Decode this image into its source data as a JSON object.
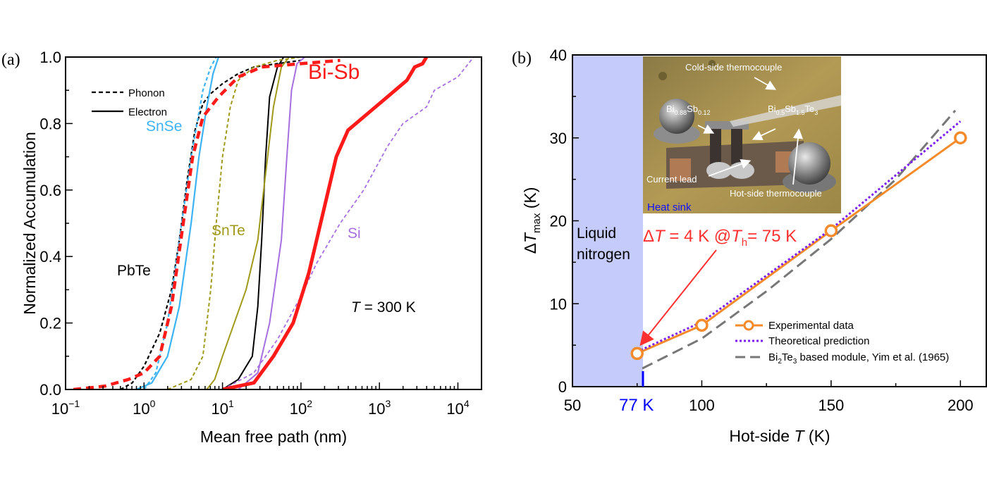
{
  "chart_data": [
    {
      "type": "line",
      "panel_label": "(a)",
      "xlabel": "Mean free path (nm)",
      "ylabel": "Normalized Accumulation",
      "xscale": "log",
      "xlim": [
        0.1,
        20000
      ],
      "ylim": [
        0,
        1.0
      ],
      "x_ticks": [
        {
          "base": "10",
          "exp": "−1"
        },
        {
          "base": "10",
          "exp": "0"
        },
        {
          "base": "10",
          "exp": "1"
        },
        {
          "base": "10",
          "exp": "2"
        },
        {
          "base": "10",
          "exp": "3"
        },
        {
          "base": "10",
          "exp": "4"
        }
      ],
      "y_ticks": [
        "0.0",
        "0.2",
        "0.4",
        "0.6",
        "0.8",
        "1.0"
      ],
      "legend": {
        "placement": "top-left",
        "entries": [
          {
            "label": "Phonon",
            "style": "dashed"
          },
          {
            "label": "Electron",
            "style": "solid"
          }
        ]
      },
      "annotations": {
        "temperature_T": "T",
        "temperature_rest": " = 300 K"
      },
      "material_labels": {
        "SnSe": "SnSe",
        "PbTe": "PbTe",
        "SnTe": "SnTe",
        "BiSb": "Bi-Sb",
        "Si": "Si"
      },
      "series": [
        {
          "name": "PbTe phonon",
          "color": "#000000",
          "style": "dashed",
          "width": 2.2,
          "log10_x": [
            -0.3,
            -0.15,
            0,
            0.2,
            0.35,
            0.45,
            0.55,
            0.65,
            0.75,
            0.85,
            1.0,
            1.2,
            1.4,
            1.7,
            2.0
          ],
          "y": [
            0,
            0.02,
            0.07,
            0.17,
            0.3,
            0.45,
            0.63,
            0.78,
            0.86,
            0.89,
            0.92,
            0.95,
            0.97,
            0.98,
            0.99
          ]
        },
        {
          "name": "PbTe electron",
          "color": "#000000",
          "style": "solid",
          "width": 2,
          "log10_x": [
            1.0,
            1.2,
            1.38,
            1.45,
            1.5,
            1.55,
            1.6,
            1.7,
            1.78
          ],
          "y": [
            0,
            0.03,
            0.1,
            0.25,
            0.45,
            0.7,
            0.88,
            0.97,
            1.0
          ]
        },
        {
          "name": "SnSe phonon",
          "color": "#3db3f5",
          "style": "dashed",
          "width": 2.2,
          "log10_x": [
            0,
            0.15,
            0.3,
            0.45,
            0.6,
            0.75,
            0.85,
            0.92
          ],
          "y": [
            0,
            0.05,
            0.2,
            0.45,
            0.7,
            0.9,
            0.97,
            1.0
          ]
        },
        {
          "name": "SnSe electron",
          "color": "#3db3f5",
          "style": "solid",
          "width": 2.2,
          "log10_x": [
            -0.1,
            0.1,
            0.3,
            0.45,
            0.6,
            0.7,
            0.8,
            0.88,
            0.95
          ],
          "y": [
            0,
            0.02,
            0.1,
            0.25,
            0.5,
            0.7,
            0.85,
            0.95,
            1.0
          ]
        },
        {
          "name": "SnTe phonon",
          "color": "#a09a1a",
          "style": "dashed",
          "width": 2,
          "log10_x": [
            0.3,
            0.6,
            0.75,
            0.85,
            0.92,
            1.0,
            1.1,
            1.2,
            1.4,
            1.7,
            2.0
          ],
          "y": [
            0,
            0.03,
            0.1,
            0.3,
            0.5,
            0.7,
            0.85,
            0.93,
            0.97,
            0.99,
            1.0
          ]
        },
        {
          "name": "SnTe electron",
          "color": "#a09a1a",
          "style": "solid",
          "width": 2,
          "log10_x": [
            0.8,
            0.9,
            1.0,
            1.15,
            1.3,
            1.45,
            1.55,
            1.65,
            1.75,
            1.85
          ],
          "y": [
            0,
            0.03,
            0.1,
            0.2,
            0.3,
            0.45,
            0.65,
            0.85,
            0.97,
            1.0
          ]
        },
        {
          "name": "Si phonon",
          "color": "#a66fe0",
          "style": "dashed",
          "width": 1.8,
          "log10_x": [
            1.0,
            1.4,
            1.7,
            2.0,
            2.2,
            2.5,
            2.8,
            3.1,
            3.3,
            3.6,
            3.7,
            4.0,
            4.2
          ],
          "y": [
            0,
            0.05,
            0.15,
            0.28,
            0.38,
            0.5,
            0.6,
            0.73,
            0.8,
            0.85,
            0.9,
            0.94,
            1.0
          ]
        },
        {
          "name": "Si electron",
          "color": "#a66fe0",
          "style": "solid",
          "width": 2,
          "log10_x": [
            1.2,
            1.45,
            1.6,
            1.75,
            1.82,
            1.88,
            1.95,
            2.05
          ],
          "y": [
            0,
            0.05,
            0.2,
            0.45,
            0.7,
            0.9,
            0.98,
            1.0
          ]
        },
        {
          "name": "Bi-Sb phonon",
          "color": "#ff1a1a",
          "style": "thickdashed",
          "width": 4.5,
          "log10_x": [
            -0.9,
            -0.5,
            -0.2,
            0,
            0.2,
            0.35,
            0.5,
            0.62,
            0.75,
            0.95,
            1.2,
            1.5,
            2.0,
            2.5
          ],
          "y": [
            0,
            0.01,
            0.03,
            0.05,
            0.1,
            0.25,
            0.5,
            0.7,
            0.82,
            0.88,
            0.94,
            0.97,
            0.98,
            0.99
          ]
        },
        {
          "name": "Bi-Sb electron",
          "color": "#ff1a1a",
          "style": "solid",
          "width": 5,
          "log10_x": [
            1.0,
            1.4,
            1.65,
            1.9,
            2.1,
            2.3,
            2.45,
            2.6,
            2.8,
            3.0,
            3.2,
            3.35,
            3.45,
            3.55,
            3.6
          ],
          "y": [
            0,
            0.02,
            0.1,
            0.2,
            0.35,
            0.55,
            0.7,
            0.78,
            0.82,
            0.86,
            0.9,
            0.93,
            0.97,
            0.98,
            1.0
          ]
        }
      ]
    },
    {
      "type": "line",
      "panel_label": "(b)",
      "xlabel_pre": "Hot-side ",
      "xlabel_T": "T",
      "xlabel_post": " (K)",
      "ylabel_delta": "Δ",
      "ylabel_T": "T",
      "ylabel_sub": "max",
      "ylabel_post": " (K)",
      "xlim": [
        50,
        210
      ],
      "ylim": [
        0,
        40
      ],
      "x_ticks": [
        "50",
        "100",
        "150",
        "200"
      ],
      "y_ticks": [
        "0",
        "10",
        "20",
        "30",
        "40"
      ],
      "marker_77K": {
        "value": 77,
        "label": "77 K",
        "color": "#0000ff"
      },
      "shaded_region": {
        "x_range": [
          50,
          77
        ],
        "label_line1": "Liquid",
        "label_line2": "nitrogen",
        "color": "#c5cbfa"
      },
      "annotation": {
        "delta": "Δ",
        "T": "T",
        "eq": " = 4 K @",
        "Th": "T",
        "h": "h",
        "rest": "= 75 K",
        "color": "#ff3030",
        "points_to": [
          75,
          4
        ]
      },
      "legend": {
        "placement": "bottom-right",
        "entries": [
          "Experimental data",
          "Theoretical prediction"
        ],
        "entry3": {
          "pre": "Bi",
          "sub1": "2",
          "mid": "Te",
          "sub2": "3",
          "post": " based module, Yim et al. (1965)"
        }
      },
      "series": [
        {
          "name": "Experimental data",
          "color": "#f58a2a",
          "style": "solid-markers",
          "x": [
            75,
            100,
            150,
            200
          ],
          "y": [
            4,
            7.4,
            18.8,
            30
          ]
        },
        {
          "name": "Theoretical prediction",
          "color": "#7a1ff0",
          "style": "dotted",
          "x": [
            75,
            100,
            150,
            200
          ],
          "y": [
            4.2,
            7.8,
            19.0,
            32.0
          ]
        },
        {
          "name": "Bi2Te3 based module, Yim et al. (1965)",
          "color": "#777777",
          "style": "dashed",
          "x": [
            77,
            100,
            125,
            150,
            175,
            198
          ],
          "y": [
            2.2,
            5.8,
            11.5,
            17.8,
            25.0,
            33.3
          ]
        }
      ],
      "inset_photo": {
        "labels": {
          "cold": "Cold-side thermocouple",
          "bisb": {
            "pre": "Bi",
            "s1": "0.88",
            "mid": "Sb",
            "s2": "0.12"
          },
          "bst": {
            "pre": "Bi",
            "s1": "0.5",
            "mid": "Sb",
            "s2": "1.5",
            "mid2": "Te",
            "s3": "3"
          },
          "lead": "Current lead",
          "hot": "Hot-side thermocouple",
          "sink": "Heat sink"
        }
      }
    }
  ]
}
